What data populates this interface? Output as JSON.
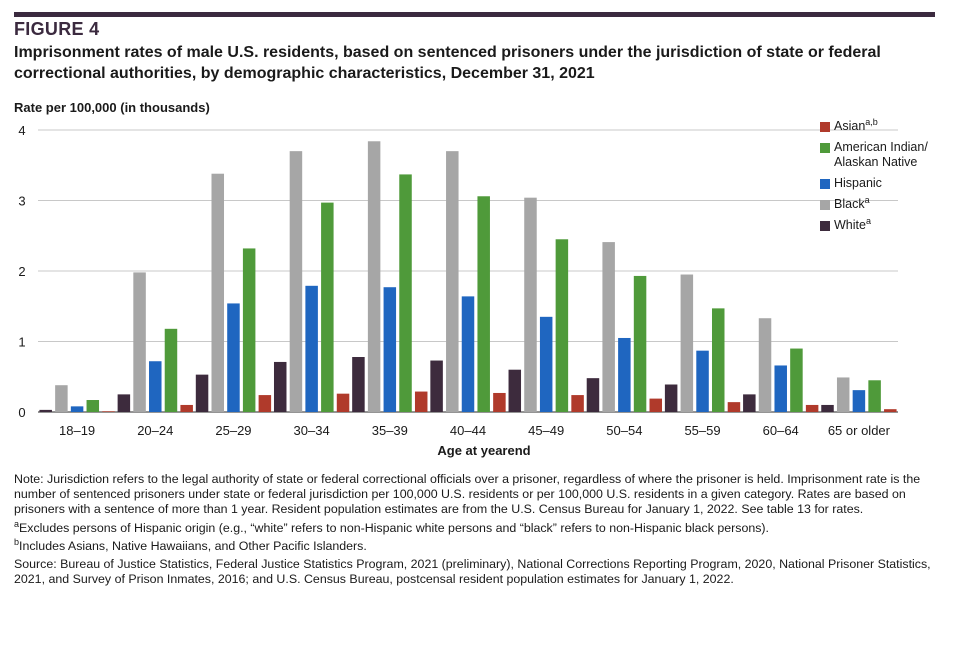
{
  "figure_label": "FIGURE 4",
  "title": "Imprisonment rates of male U.S. residents, based on sentenced prisoners under the jurisdiction of state or federal correctional authorities, by demographic characteristics, December 31, 2021",
  "notes": {
    "note": "Note: Jurisdiction refers to the legal authority of state or federal correctional officials over a prisoner, regardless of where the prisoner is held. Imprisonment rate is the number of sentenced prisoners under state or federal jurisdiction per 100,000 U.S. residents or per 100,000 U.S. residents in a given category. Rates are based on prisoners with a sentence of more than 1 year. Resident population estimates are from the U.S. Census Bureau for January 1, 2022. See table 13 for rates.",
    "a_mark": "a",
    "a_text": "Excludes persons of Hispanic origin (e.g., “white” refers to non-Hispanic white persons and “black” refers to non-Hispanic black persons).",
    "b_mark": "b",
    "b_text": "Includes Asians, Native Hawaiians, and Other Pacific Islanders.",
    "source": "Source: Bureau of Justice Statistics, Federal Justice Statistics Program, 2021 (preliminary), National Corrections Reporting Program, 2020, National Prisoner Statistics, 2021, and Survey of Prison Inmates, 2016; and U.S. Census Bureau, postcensal resident population estimates for January 1, 2022."
  },
  "chart_data": {
    "type": "bar",
    "ylabel": "Rate per 100,000 (in thousands)",
    "xlabel": "Age at yearend",
    "ylim": [
      0,
      4
    ],
    "yticks": [
      "0",
      "1",
      "2",
      "3",
      "4"
    ],
    "grid": true,
    "legend_position": "right",
    "categories": [
      "18–19",
      "20–24",
      "25–29",
      "30–34",
      "35–39",
      "40–44",
      "45–49",
      "50–54",
      "55–59",
      "60–64",
      "65 or older"
    ],
    "series": [
      {
        "name": "White",
        "sup": "a",
        "color": "#3d2b3d",
        "values": [
          0.03,
          0.25,
          0.53,
          0.71,
          0.78,
          0.73,
          0.6,
          0.48,
          0.39,
          0.25,
          0.1
        ]
      },
      {
        "name": "Black",
        "sup": "a",
        "color": "#a6a6a6",
        "values": [
          0.38,
          1.98,
          3.38,
          3.7,
          3.84,
          3.7,
          3.04,
          2.41,
          1.95,
          1.33,
          0.49
        ]
      },
      {
        "name": "Hispanic",
        "sup": "",
        "color": "#1f66c0",
        "values": [
          0.08,
          0.72,
          1.54,
          1.79,
          1.77,
          1.64,
          1.35,
          1.05,
          0.87,
          0.66,
          0.31
        ]
      },
      {
        "name": "American Indian/ Alaskan Native",
        "sup": "",
        "color": "#4f9a3a",
        "values": [
          0.17,
          1.18,
          2.32,
          2.97,
          3.37,
          3.06,
          2.45,
          1.93,
          1.47,
          0.9,
          0.45
        ]
      },
      {
        "name": "Asian",
        "sup": "a,b",
        "color": "#b03a2b",
        "values": [
          0.01,
          0.1,
          0.24,
          0.26,
          0.29,
          0.27,
          0.24,
          0.19,
          0.14,
          0.1,
          0.04
        ]
      }
    ],
    "legend_order": [
      4,
      3,
      2,
      1,
      0
    ],
    "legend_lines": [
      [
        "Asian"
      ],
      [
        "American Indian/",
        "Alaskan Native"
      ],
      [
        "Hispanic"
      ],
      [
        "Black"
      ],
      [
        "White"
      ]
    ]
  }
}
